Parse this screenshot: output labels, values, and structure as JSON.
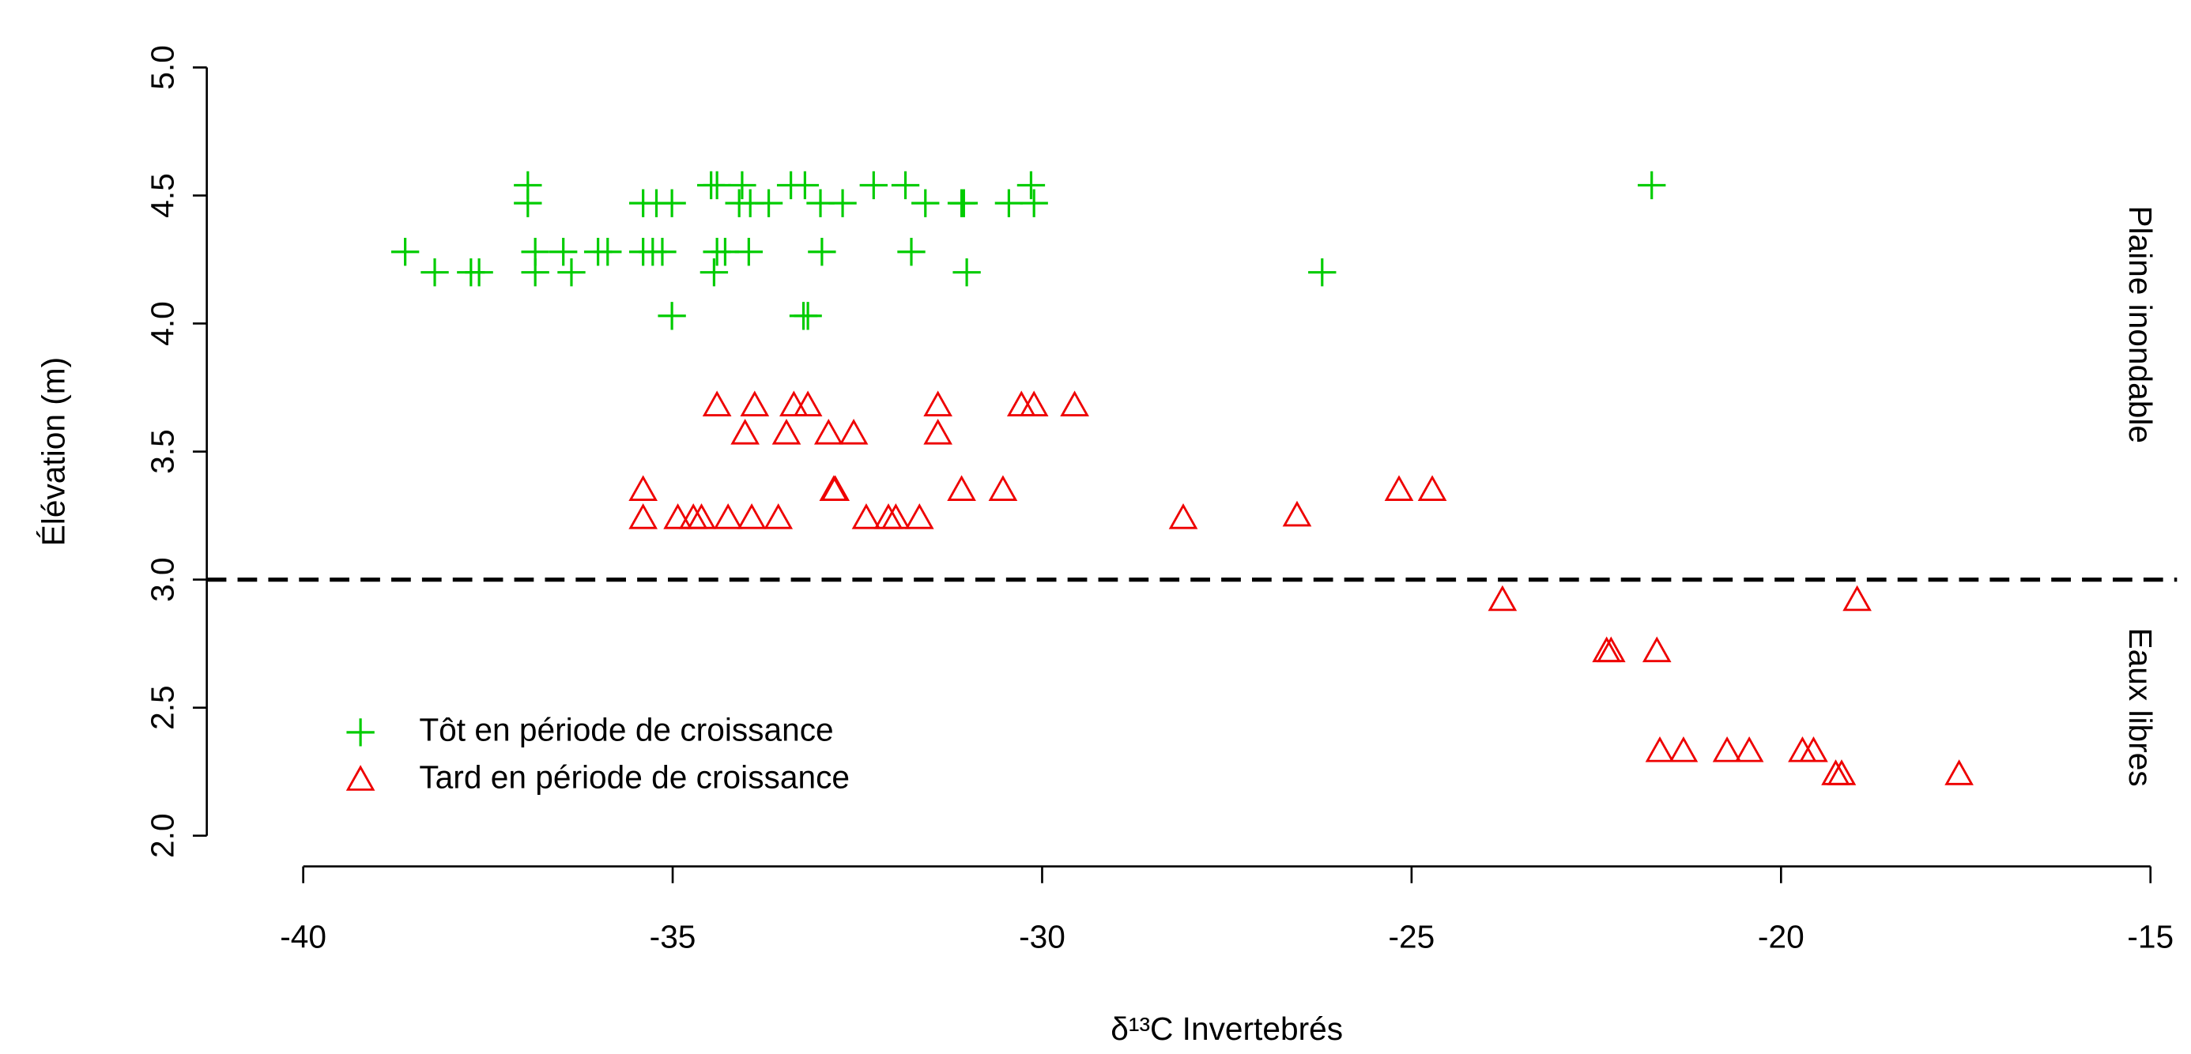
{
  "chart_data": {
    "type": "scatter",
    "xlabel": "δ¹³C Invertebrés",
    "ylabel": "Élévation (m)",
    "xlim": [
      -40,
      -15
    ],
    "ylim": [
      2,
      5
    ],
    "xticks": [
      -40,
      -35,
      -30,
      -25,
      -20,
      -15
    ],
    "yticks": [
      {
        "value": 2,
        "label": "2.0"
      },
      {
        "value": 2.5,
        "label": "2.5"
      },
      {
        "value": 3,
        "label": "3.0"
      },
      {
        "value": 3.5,
        "label": "3.5"
      },
      {
        "value": 4,
        "label": "4.0"
      },
      {
        "value": 4.5,
        "label": "4.5"
      },
      {
        "value": 5,
        "label": "5.0"
      }
    ],
    "reference_line": {
      "y": 3,
      "style": "dashed"
    },
    "annotations": [
      "Plaine inondable",
      "Eaux libres"
    ],
    "legend": "bottomleft",
    "series": [
      {
        "name": "Tôt en période de croissance",
        "color": "#00cc00",
        "marker": "plus",
        "x": [
          -38.62,
          -38.22,
          -37.73,
          -37.62,
          -36.96,
          -36.96,
          -36.86,
          -36.86,
          -36.48,
          -36.37,
          -36.01,
          -35.88,
          -35.4,
          -35.4,
          -35.27,
          -35.14,
          -35.22,
          -35.01,
          -35.01,
          -34.48,
          -34.4,
          -34.44,
          -34.4,
          -34.29,
          -34.06,
          -34.1,
          -33.95,
          -33.97,
          -33.7,
          -33.4,
          -33.21,
          -33.23,
          -33.17,
          -33.0,
          -32.98,
          -32.7,
          -32.28,
          -31.85,
          -31.77,
          -31.58,
          -31.09,
          -31.06,
          -31.02,
          -30.45,
          -30.15,
          -30.11,
          -26.21,
          -21.75
        ],
        "values": [
          4.28,
          4.2,
          4.2,
          4.2,
          4.54,
          4.47,
          4.28,
          4.2,
          4.28,
          4.2,
          4.28,
          4.28,
          4.47,
          4.28,
          4.28,
          4.28,
          4.47,
          4.47,
          4.03,
          4.54,
          4.54,
          4.2,
          4.28,
          4.28,
          4.54,
          4.47,
          4.47,
          4.28,
          4.47,
          4.54,
          4.54,
          4.03,
          4.03,
          4.47,
          4.28,
          4.47,
          4.54,
          4.54,
          4.28,
          4.47,
          4.47,
          4.47,
          4.2,
          4.47,
          4.54,
          4.47,
          4.2,
          4.54
        ]
      },
      {
        "name": "Tard en période de croissance",
        "color": "#ee0000",
        "marker": "triangle",
        "x": [
          -35.4,
          -35.4,
          -34.93,
          -34.72,
          -34.61,
          -34.4,
          -34.25,
          -34.02,
          -33.89,
          -33.93,
          -33.57,
          -33.46,
          -33.36,
          -33.17,
          -32.89,
          -32.82,
          -32.8,
          -32.55,
          -32.38,
          -32.08,
          -31.98,
          -31.66,
          -31.41,
          -31.41,
          -31.09,
          -30.53,
          -30.28,
          -30.11,
          -29.56,
          -28.09,
          -26.55,
          -25.17,
          -24.72,
          -23.77,
          -22.36,
          -22.3,
          -21.68,
          -21.64,
          -21.32,
          -20.73,
          -20.43,
          -19.71,
          -19.56,
          -19.26,
          -19.18,
          -18.97,
          -17.59
        ],
        "values": [
          3.35,
          3.24,
          3.24,
          3.24,
          3.24,
          3.68,
          3.24,
          3.57,
          3.68,
          3.24,
          3.24,
          3.57,
          3.68,
          3.68,
          3.57,
          3.35,
          3.35,
          3.57,
          3.24,
          3.24,
          3.24,
          3.24,
          3.68,
          3.57,
          3.35,
          3.35,
          3.68,
          3.68,
          3.68,
          3.24,
          3.25,
          3.35,
          3.35,
          2.92,
          2.72,
          2.72,
          2.72,
          2.33,
          2.33,
          2.33,
          2.33,
          2.33,
          2.33,
          2.24,
          2.24,
          2.92,
          2.24
        ]
      }
    ]
  }
}
